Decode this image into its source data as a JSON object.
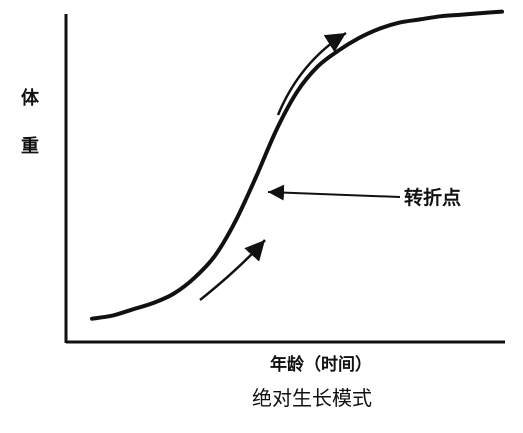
{
  "chart_data": {
    "type": "line",
    "title": "绝对生长模式",
    "xlabel": "年龄（时间）",
    "ylabel": "体重",
    "ylabel_chars": [
      "体",
      "重"
    ],
    "grid": false,
    "annotations": [
      {
        "text": "转折点"
      }
    ],
    "series": [
      {
        "x": [
          0,
          0.05,
          0.1,
          0.15,
          0.2,
          0.25,
          0.3,
          0.35,
          0.4,
          0.45,
          0.5,
          0.55,
          0.6,
          0.65,
          0.7,
          0.75,
          0.8,
          0.85,
          0.9,
          0.95,
          1.0
        ],
        "y": [
          0.02,
          0.03,
          0.05,
          0.07,
          0.1,
          0.15,
          0.22,
          0.33,
          0.47,
          0.62,
          0.74,
          0.82,
          0.87,
          0.91,
          0.94,
          0.96,
          0.97,
          0.98,
          0.985,
          0.99,
          0.995
        ]
      }
    ]
  }
}
